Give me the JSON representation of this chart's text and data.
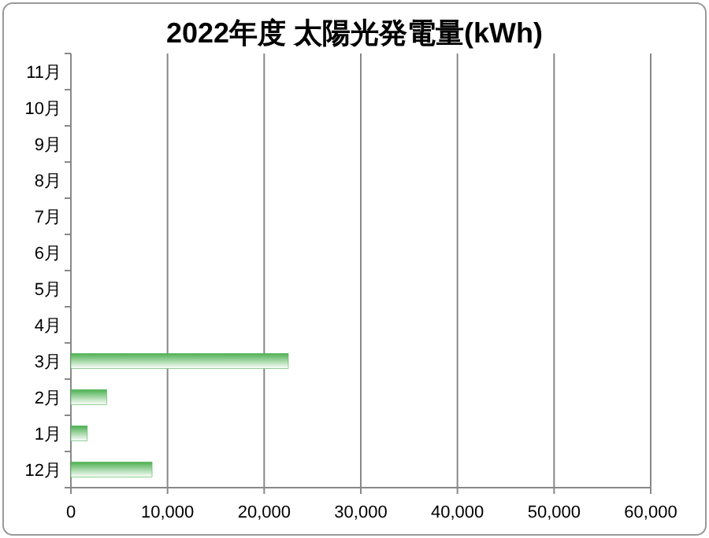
{
  "chart_data": {
    "type": "bar",
    "title": "2022年度 太陽光発電量(kWh)",
    "orientation": "horizontal",
    "categories": [
      "11月",
      "10月",
      "9月",
      "8月",
      "7月",
      "6月",
      "5月",
      "4月",
      "3月",
      "2月",
      "1月",
      "12月"
    ],
    "values": [
      null,
      null,
      null,
      null,
      null,
      null,
      null,
      null,
      22500,
      3700,
      1700,
      8400
    ],
    "color": "#4cb050",
    "xlim": [
      0,
      60000
    ],
    "xticks": [
      {
        "value": 0,
        "label": "0"
      },
      {
        "value": 10000,
        "label": "10,000"
      },
      {
        "value": 20000,
        "label": "20,000"
      },
      {
        "value": 30000,
        "label": "30,000"
      },
      {
        "value": 40000,
        "label": "40,000"
      },
      {
        "value": 50000,
        "label": "50,000"
      },
      {
        "value": 60000,
        "label": "60,000"
      }
    ],
    "grid": "x"
  }
}
